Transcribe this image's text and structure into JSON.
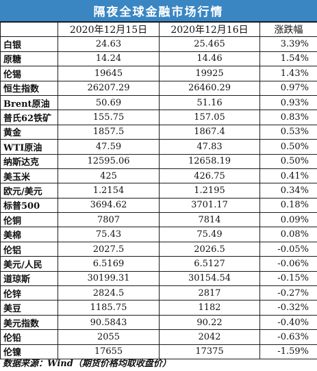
{
  "title": "隔夜全球金融市场行情",
  "table": {
    "headers": [
      "",
      "2020年12月15日",
      "2020年12月16日",
      "涨跌幅"
    ],
    "rows": [
      {
        "name": "白银",
        "d15": "24.63",
        "d16": "25.465",
        "change": "3.39%"
      },
      {
        "name": "原糖",
        "d15": "14.24",
        "d16": "14.46",
        "change": "1.54%"
      },
      {
        "name": "伦锡",
        "d15": "19645",
        "d16": "19925",
        "change": "1.43%"
      },
      {
        "name": "恒生指数",
        "d15": "26207.29",
        "d16": "26460.29",
        "change": "0.97%"
      },
      {
        "name": "Brent原油",
        "d15": "50.69",
        "d16": "51.16",
        "change": "0.93%"
      },
      {
        "name": "普氏62铁矿",
        "d15": "155.75",
        "d16": "157.05",
        "change": "0.83%"
      },
      {
        "name": "黄金",
        "d15": "1857.5",
        "d16": "1867.4",
        "change": "0.53%"
      },
      {
        "name": "WTI原油",
        "d15": "47.59",
        "d16": "47.83",
        "change": "0.50%"
      },
      {
        "name": "纳斯达克",
        "d15": "12595.06",
        "d16": "12658.19",
        "change": "0.50%"
      },
      {
        "name": "美玉米",
        "d15": "425",
        "d16": "426.75",
        "change": "0.41%"
      },
      {
        "name": "欧元/美元",
        "d15": "1.2154",
        "d16": "1.2195",
        "change": "0.34%"
      },
      {
        "name": "标普500",
        "d15": "3694.62",
        "d16": "3701.17",
        "change": "0.18%"
      },
      {
        "name": "伦铜",
        "d15": "7807",
        "d16": "7814",
        "change": "0.09%"
      },
      {
        "name": "美棉",
        "d15": "75.43",
        "d16": "75.49",
        "change": "0.08%"
      },
      {
        "name": "伦铝",
        "d15": "2027.5",
        "d16": "2026.5",
        "change": "-0.05%"
      },
      {
        "name": "美元/人民",
        "d15": "6.5169",
        "d16": "6.5127",
        "change": "-0.06%"
      },
      {
        "name": "道琼斯",
        "d15": "30199.31",
        "d16": "30154.54",
        "change": "-0.15%"
      },
      {
        "name": "伦锌",
        "d15": "2824.5",
        "d16": "2817",
        "change": "-0.27%"
      },
      {
        "name": "美豆",
        "d15": "1185.75",
        "d16": "1182",
        "change": "-0.32%"
      },
      {
        "name": "美元指数",
        "d15": "90.5843",
        "d16": "90.22",
        "change": "-0.40%"
      },
      {
        "name": "伦铅",
        "d15": "2055",
        "d16": "2042",
        "change": "-0.63%"
      },
      {
        "name": "伦镍",
        "d15": "17655",
        "d16": "17375",
        "change": "-1.59%"
      }
    ]
  },
  "footer": "数据来源：Wind（期货价格均取收盘价）",
  "colors": {
    "title_bg": "#3a86c3",
    "title_text": "#ffffff",
    "border": "#1a1a1a"
  }
}
